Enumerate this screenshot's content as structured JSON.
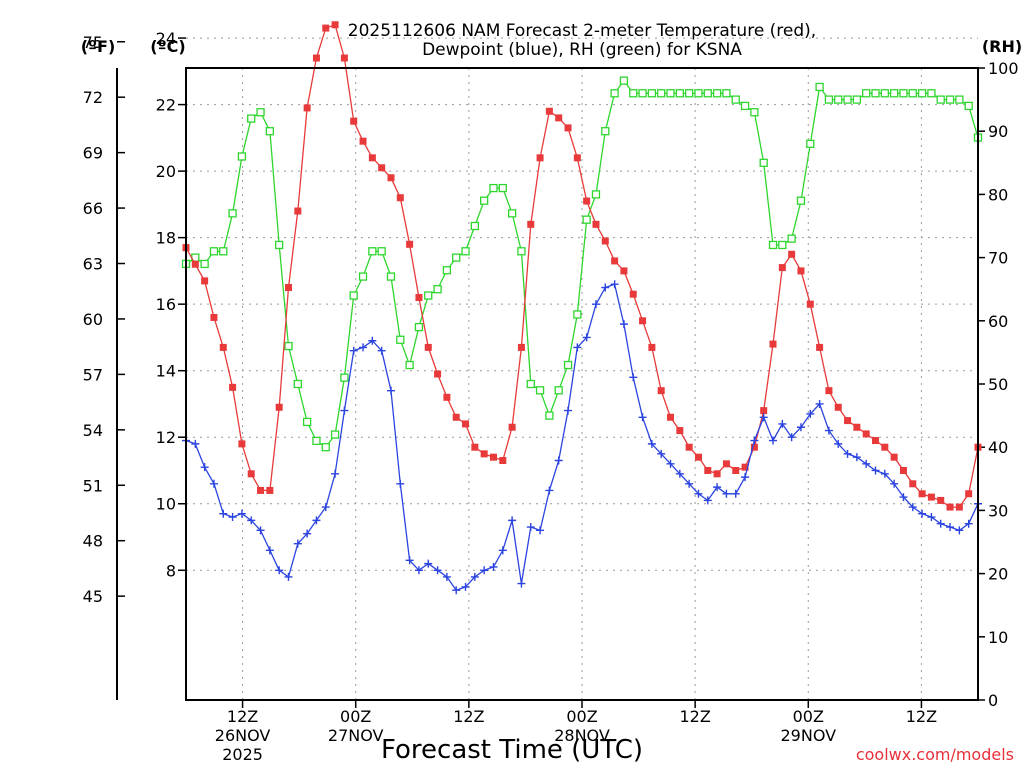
{
  "chart_data": {
    "type": "line",
    "title_lines": [
      "2025112606 NAM Forecast 2-meter Temperature (red),",
      "Dewpoint (blue), RH (green) for KSNA"
    ],
    "axes": {
      "left_outer_label": "(ºF)",
      "left_inner_label": "(ºC)",
      "right_label": "(RH)",
      "x_title": "Forecast Time (UTC)",
      "fahrenheit_ticks": [
        75,
        72,
        69,
        66,
        63,
        60,
        57,
        54,
        51,
        48,
        45
      ],
      "celsius_ticks": [
        24,
        22,
        20,
        18,
        16,
        14,
        12,
        10,
        8
      ],
      "celsius_range": [
        4.1,
        23.1
      ],
      "rh_ticks": [
        100,
        90,
        80,
        70,
        60,
        50,
        40,
        30,
        20,
        10,
        0
      ],
      "rh_range": [
        0,
        100
      ],
      "x_range_hours_from_run": [
        0,
        84
      ],
      "x_tick_hours": [
        6,
        18,
        30,
        42,
        54,
        66,
        78
      ],
      "x_labels": [
        {
          "hours": 6,
          "lines": [
            "12Z",
            "26NOV",
            "2025"
          ]
        },
        {
          "hours": 18,
          "lines": [
            "00Z",
            "27NOV"
          ]
        },
        {
          "hours": 30,
          "lines": [
            "12Z"
          ]
        },
        {
          "hours": 42,
          "lines": [
            "00Z",
            "28NOV"
          ]
        },
        {
          "hours": 54,
          "lines": [
            "12Z"
          ]
        },
        {
          "hours": 66,
          "lines": [
            "00Z",
            "29NOV"
          ]
        },
        {
          "hours": 78,
          "lines": [
            "12Z"
          ]
        }
      ],
      "grid": true
    },
    "series": [
      {
        "name": "Temperature (red)",
        "color": "#e83a3a",
        "marker": "filled-square",
        "axis": "celsius",
        "values": [
          17.7,
          17.2,
          16.7,
          15.6,
          14.7,
          13.5,
          11.8,
          10.9,
          10.4,
          10.4,
          12.9,
          16.5,
          18.8,
          21.9,
          23.4,
          24.3,
          24.4,
          23.4,
          21.5,
          20.9,
          20.4,
          20.1,
          19.8,
          19.2,
          17.8,
          16.2,
          14.7,
          13.9,
          13.2,
          12.6,
          12.4,
          11.7,
          11.5,
          11.4,
          11.3,
          12.3,
          14.7,
          18.4,
          20.4,
          21.8,
          21.6,
          21.3,
          20.4,
          19.1,
          18.4,
          17.9,
          17.3,
          17.0,
          16.3,
          15.5,
          14.7,
          13.4,
          12.6,
          12.2,
          11.7,
          11.4,
          11.0,
          10.9,
          11.2,
          11.0,
          11.1,
          11.7,
          12.8,
          14.8,
          17.1,
          17.5,
          17.0,
          16.0,
          14.7,
          13.4,
          12.9,
          12.5,
          12.3,
          12.1,
          11.9,
          11.7,
          11.4,
          11.0,
          10.6,
          10.3,
          10.2,
          10.1,
          9.9,
          9.9,
          10.3,
          11.7
        ]
      },
      {
        "name": "Dewpoint (blue)",
        "color": "#2b44e0",
        "marker": "plus",
        "axis": "celsius",
        "values": [
          11.9,
          11.8,
          11.1,
          10.6,
          9.7,
          9.6,
          9.7,
          9.5,
          9.2,
          8.6,
          8.0,
          7.8,
          8.8,
          9.1,
          9.5,
          9.9,
          10.9,
          12.8,
          14.6,
          14.7,
          14.9,
          14.6,
          13.4,
          10.6,
          8.3,
          8.0,
          8.2,
          8.0,
          7.8,
          7.4,
          7.5,
          7.8,
          8.0,
          8.1,
          8.6,
          9.5,
          7.6,
          9.3,
          9.2,
          10.4,
          11.3,
          12.8,
          14.7,
          15.0,
          16.0,
          16.5,
          16.6,
          15.4,
          13.8,
          12.6,
          11.8,
          11.5,
          11.2,
          10.9,
          10.6,
          10.3,
          10.1,
          10.5,
          10.3,
          10.3,
          10.8,
          11.9,
          12.6,
          11.9,
          12.4,
          12.0,
          12.3,
          12.7,
          13.0,
          12.2,
          11.8,
          11.5,
          11.4,
          11.2,
          11.0,
          10.9,
          10.6,
          10.2,
          9.9,
          9.7,
          9.6,
          9.4,
          9.3,
          9.2,
          9.4,
          10.0
        ]
      },
      {
        "name": "RH (green)",
        "color": "#2ed62e",
        "marker": "open-square",
        "axis": "rh",
        "values": [
          69,
          70,
          69,
          71,
          71,
          77,
          86,
          92,
          93,
          90,
          72,
          56,
          50,
          44,
          41,
          40,
          42,
          51,
          64,
          67,
          71,
          71,
          67,
          57,
          53,
          59,
          64,
          65,
          68,
          70,
          71,
          75,
          79,
          81,
          81,
          77,
          71,
          50,
          49,
          45,
          49,
          53,
          61,
          76,
          80,
          90,
          96,
          98,
          96,
          96,
          96,
          96,
          96,
          96,
          96,
          96,
          96,
          96,
          96,
          95,
          94,
          93,
          85,
          72,
          72,
          73,
          79,
          88,
          97,
          95,
          95,
          95,
          95,
          96,
          96,
          96,
          96,
          96,
          96,
          96,
          96,
          95,
          95,
          95,
          94,
          89
        ]
      }
    ]
  },
  "credit": "coolwx.com/models"
}
